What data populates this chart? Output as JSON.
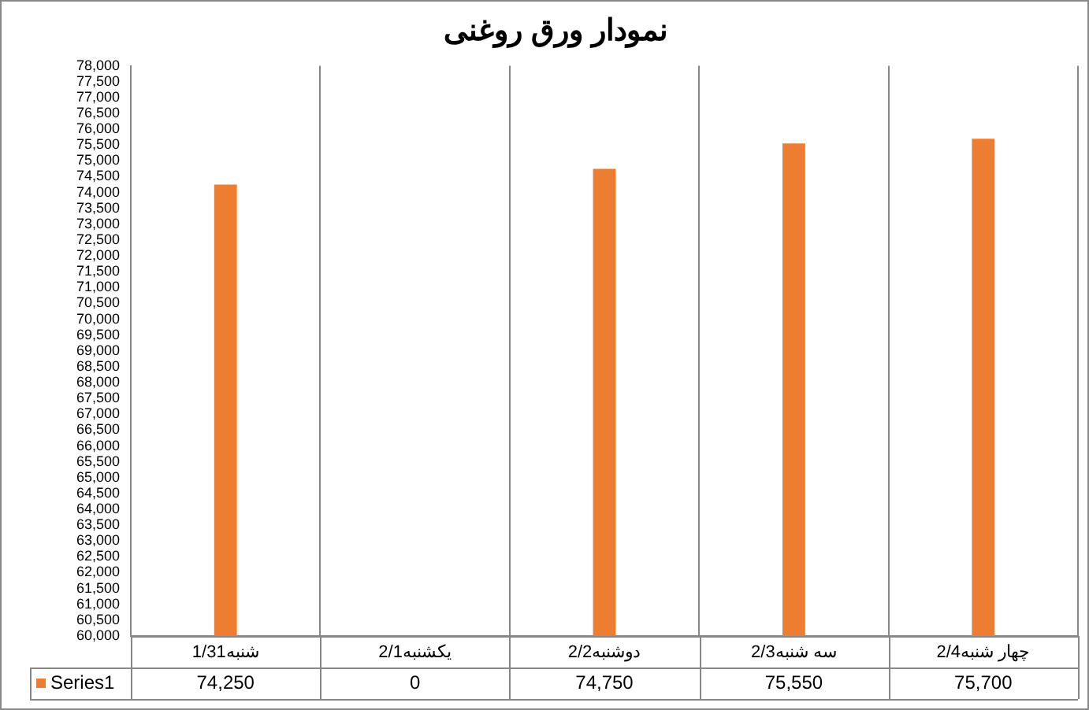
{
  "chart_data": {
    "type": "bar",
    "title": "نمودار ورق روغنی",
    "categories": [
      "شنبه1/31",
      "یکشنبه2/1",
      "دوشنبه2/2",
      "سه شنبه2/3",
      "چهار شنبه2/4"
    ],
    "series": [
      {
        "name": "Series1",
        "color": "#ed7d31",
        "values": [
          74250,
          null,
          74750,
          75550,
          75700
        ],
        "value_labels": [
          "74,250",
          "0",
          "74,750",
          "75,550",
          "75,700"
        ]
      }
    ],
    "ylim": [
      60000,
      78000
    ],
    "yticks": [
      {
        "value": 60000,
        "label": "60,000"
      },
      {
        "value": 60500,
        "label": "60,500"
      },
      {
        "value": 61000,
        "label": "61,000"
      },
      {
        "value": 61500,
        "label": "61,500"
      },
      {
        "value": 62000,
        "label": "62,000"
      },
      {
        "value": 62500,
        "label": "62,500"
      },
      {
        "value": 63000,
        "label": "63,000"
      },
      {
        "value": 63500,
        "label": "63,500"
      },
      {
        "value": 64000,
        "label": "64,000"
      },
      {
        "value": 64500,
        "label": "64,500"
      },
      {
        "value": 65000,
        "label": "65,000"
      },
      {
        "value": 65500,
        "label": "65,500"
      },
      {
        "value": 66000,
        "label": "66,000"
      },
      {
        "value": 66500,
        "label": "66,500"
      },
      {
        "value": 67000,
        "label": "67,000"
      },
      {
        "value": 67500,
        "label": "67,500"
      },
      {
        "value": 68000,
        "label": "68,000"
      },
      {
        "value": 68500,
        "label": "68,500"
      },
      {
        "value": 69000,
        "label": "69,000"
      },
      {
        "value": 69500,
        "label": "69,500"
      },
      {
        "value": 70000,
        "label": "70,000"
      },
      {
        "value": 70500,
        "label": "70,500"
      },
      {
        "value": 71000,
        "label": "71,000"
      },
      {
        "value": 71500,
        "label": "71,500"
      },
      {
        "value": 72000,
        "label": "72,000"
      },
      {
        "value": 72500,
        "label": "72,500"
      },
      {
        "value": 73000,
        "label": "73,000"
      },
      {
        "value": 73500,
        "label": "73,500"
      },
      {
        "value": 74000,
        "label": "74,000"
      },
      {
        "value": 74500,
        "label": "74,500"
      },
      {
        "value": 75000,
        "label": "75,000"
      },
      {
        "value": 75500,
        "label": "75,500"
      },
      {
        "value": 76000,
        "label": "76,000"
      },
      {
        "value": 76500,
        "label": "76,500"
      },
      {
        "value": 77000,
        "label": "77,000"
      },
      {
        "value": 77500,
        "label": "77,500"
      },
      {
        "value": 78000,
        "label": "78,000"
      }
    ],
    "grid": "x",
    "legend": "bottom left"
  }
}
